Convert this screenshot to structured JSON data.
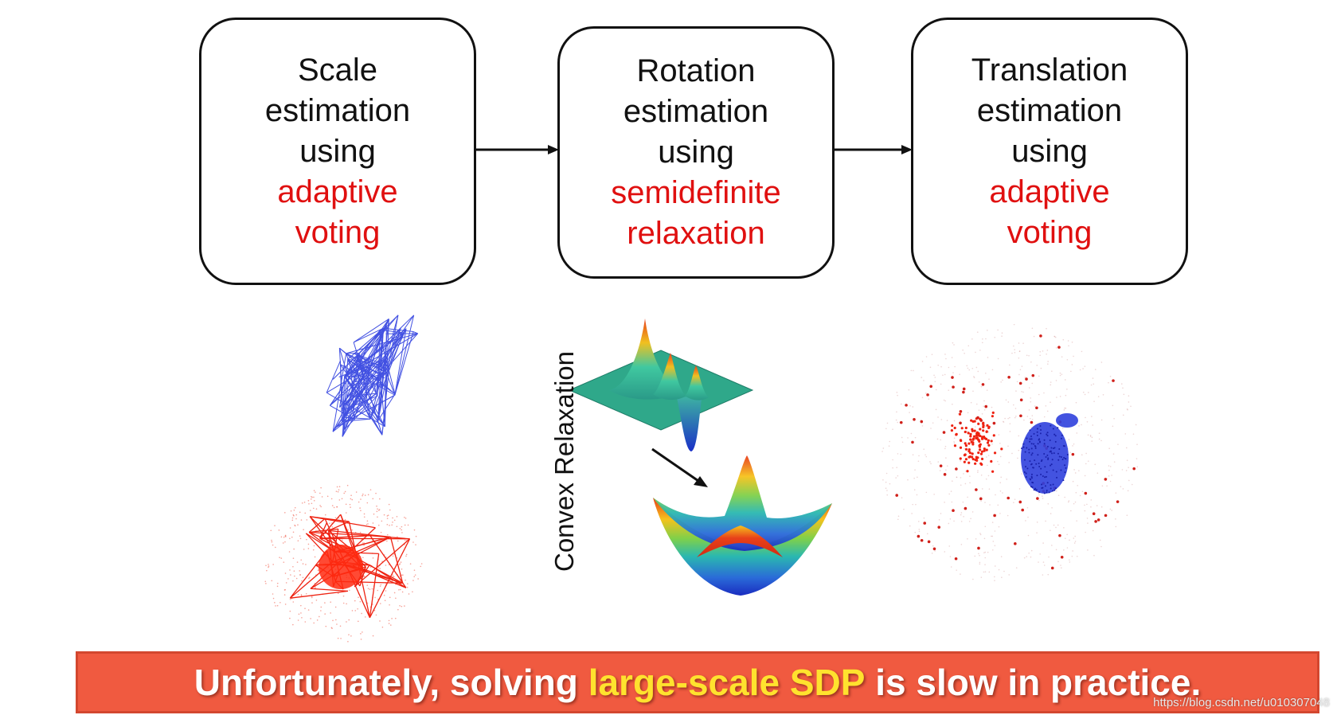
{
  "stages": [
    {
      "lines": [
        "Scale",
        "estimation",
        "using"
      ],
      "highlight": [
        "adaptive",
        "voting"
      ]
    },
    {
      "lines": [
        "Rotation",
        "estimation",
        "using"
      ],
      "highlight": [
        "semidefinite",
        "relaxation"
      ]
    },
    {
      "lines": [
        "Translation",
        "estimation",
        "using"
      ],
      "highlight": [
        "adaptive",
        "voting"
      ]
    }
  ],
  "relaxation_label": "Convex Relaxation",
  "banner": {
    "before": "Unfortunately, solving ",
    "highlight": "large-scale SDP",
    "after": " is slow in practice."
  },
  "watermark": "https://blog.csdn.net/u010307048",
  "colors": {
    "highlight_text": "#e01010",
    "banner_bg": "#f05a40",
    "banner_highlight": "#ffe22e",
    "model_points": "#2233dd",
    "outlier_points": "#ee2211"
  }
}
